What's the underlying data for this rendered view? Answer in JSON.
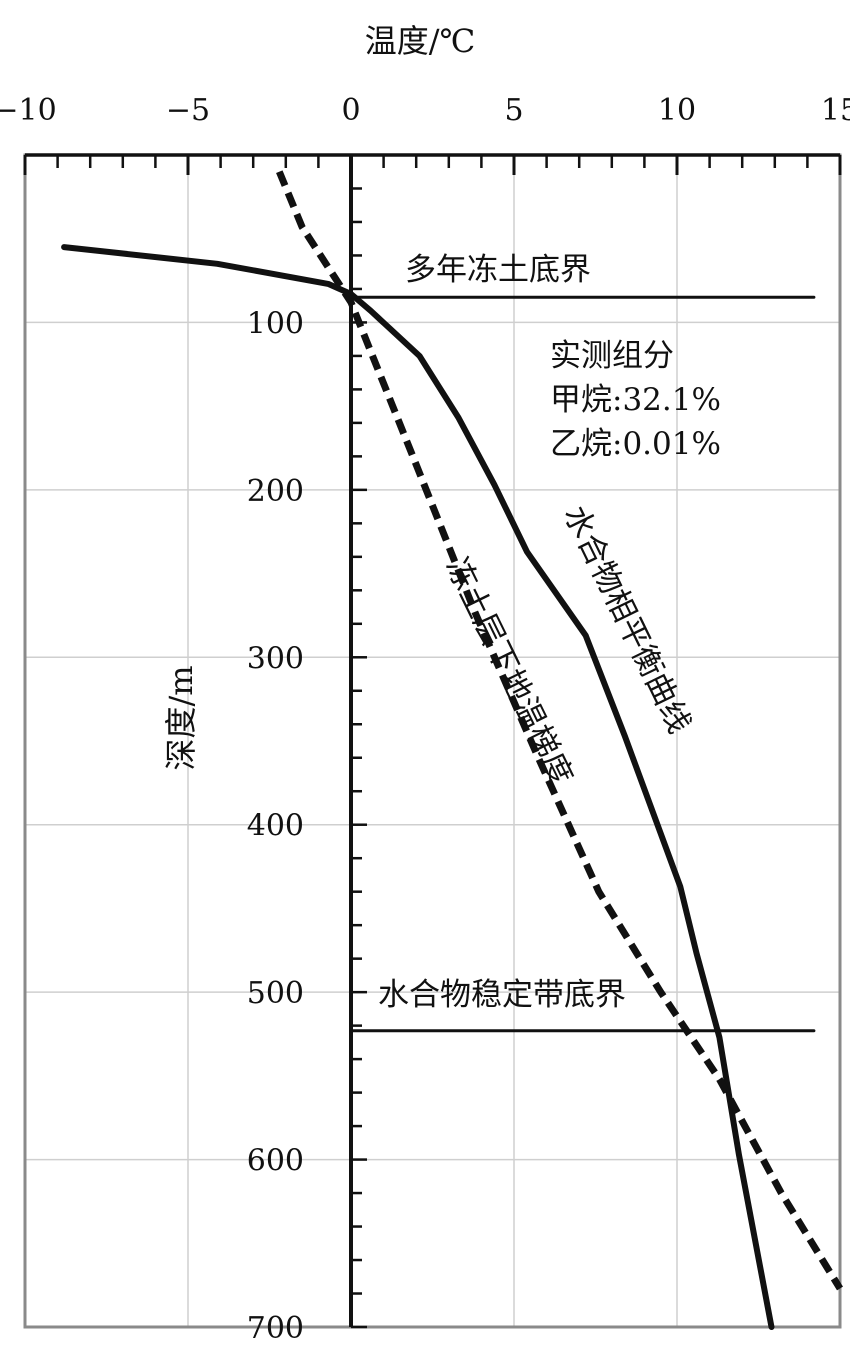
{
  "chart_data": {
    "type": "line",
    "xlabel": "温度/℃",
    "ylabel": "深度/m",
    "xlim": [
      -10,
      15
    ],
    "ylim": [
      700,
      0
    ],
    "x_axis_position": "top",
    "y_axis_position": "zero",
    "grid": true,
    "x_ticks": [
      -10,
      -5,
      0,
      5,
      10,
      15
    ],
    "x_tick_labels": [
      "−10",
      "−5",
      "0",
      "5",
      "10",
      "15"
    ],
    "y_ticks": [
      100,
      200,
      300,
      400,
      500,
      600,
      700
    ],
    "y_tick_labels": [
      "100",
      "200",
      "300",
      "400",
      "500",
      "600",
      "700"
    ],
    "series": [
      {
        "style": "solid",
        "color": "#111111",
        "label": "水合物相平衡曲线",
        "x": [
          -8.8,
          -4.1,
          -0.7,
          0,
          0.6,
          2.1,
          3.3,
          4.4,
          5.4,
          7.2,
          8.4,
          10.1,
          10.6,
          11.3,
          11.9,
          12.9
        ],
        "y": [
          55,
          65,
          77,
          83,
          93,
          120,
          157,
          197,
          237,
          287,
          347,
          437,
          477,
          527,
          597,
          700
        ]
      },
      {
        "style": "dashed",
        "color": "#111111",
        "label": "冻土层下地温梯度",
        "x": [
          -2.2,
          -1.5,
          -0.6,
          0,
          2.0,
          3.8,
          5.7,
          7.6,
          9.5,
          11.3,
          13.2,
          15.0
        ],
        "y": [
          10,
          43,
          70,
          88,
          185,
          273,
          358,
          440,
          500,
          552,
          620,
          677
        ]
      },
      {
        "style": "solid",
        "color": "#111111",
        "label": "多年冻土底界",
        "x": [
          0,
          14.2
        ],
        "y": [
          85,
          85
        ]
      },
      {
        "style": "solid",
        "color": "#111111",
        "label": "水合物稳定带底界",
        "x": [
          0,
          14.2
        ],
        "y": [
          523,
          523
        ]
      }
    ],
    "annotations": {
      "permafrost_base": "多年冻土底界",
      "hydrate_zone_base": "水合物稳定带底界",
      "measured_title": "实测组分",
      "methane": "甲烷:32.1%",
      "ethane": "乙烷:0.01%",
      "equilibrium_curve": "水合物相平衡曲线",
      "geothermal_gradient": "冻土层下地温梯度"
    }
  }
}
